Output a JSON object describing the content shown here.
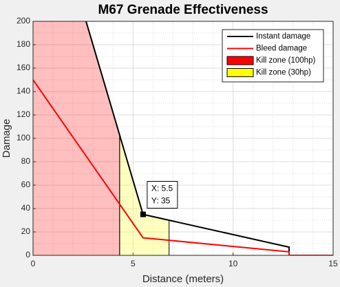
{
  "chart_data": {
    "type": "line",
    "title": "M67 Grenade Effectiveness",
    "xlabel": "Distance (meters)",
    "ylabel": "Damage",
    "xlim": [
      0,
      15
    ],
    "xticks": [
      0,
      5,
      10,
      15
    ],
    "ylim": [
      0,
      200
    ],
    "yticks": [
      0,
      20,
      40,
      60,
      80,
      100,
      120,
      140,
      160,
      180,
      200
    ],
    "grid": true,
    "minor_grid": true,
    "legend": "northeast",
    "series": [
      {
        "name": "Instant damage",
        "kind": "line",
        "color": "#000000",
        "x": [
          2.65,
          5.5,
          12.8,
          12.8
        ],
        "values": [
          200,
          35,
          7,
          3
        ]
      },
      {
        "name": "Bleed damage",
        "kind": "line",
        "color": "#ff0000",
        "x": [
          0,
          5.5,
          12.8,
          12.8,
          15
        ],
        "values": [
          150,
          15,
          3,
          0,
          0
        ]
      },
      {
        "name": "Kill zone (100hp)",
        "kind": "area",
        "color": "#ff0000",
        "alpha": 0.25,
        "x": [
          0,
          2.65,
          4.33
        ],
        "values": [
          200,
          200,
          103
        ]
      },
      {
        "name": "Kill zone (30hp)",
        "kind": "area",
        "color": "#ffff00",
        "alpha": 0.25,
        "x": [
          4.33,
          5.5,
          6.8
        ],
        "values": [
          103,
          35,
          30
        ]
      }
    ],
    "datatip": {
      "x": 5.5,
      "y": 35,
      "lines": [
        "X: 5.5",
        "Y: 35"
      ]
    }
  }
}
